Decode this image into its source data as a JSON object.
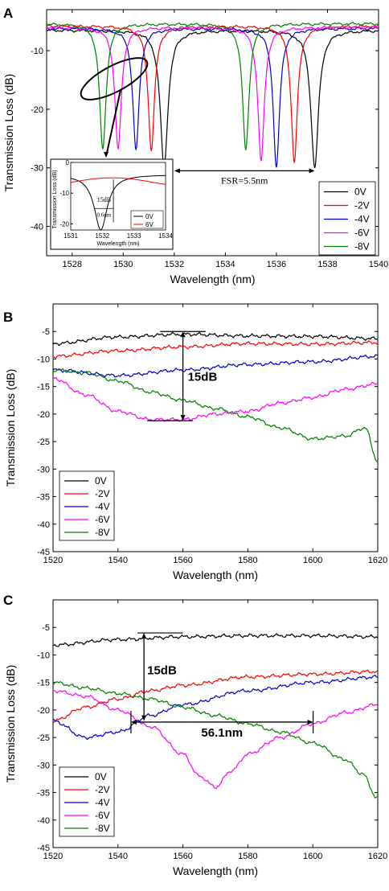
{
  "colors": {
    "0V": "#000000",
    "-2V": "#ff0000",
    "-4V": "#0000cc",
    "-6V": "#ff00ff",
    "-8V": "#008000"
  },
  "chart_data": [
    {
      "panel": "A",
      "type": "line",
      "xlabel": "Wavelength (nm)",
      "ylabel": "Transmission Loss (dB)",
      "xlim": [
        1527,
        1540
      ],
      "ylim": [
        -45,
        -3
      ],
      "xticks": [
        1528,
        1530,
        1532,
        1534,
        1536,
        1538,
        1540
      ],
      "yticks": [
        -40,
        -30,
        -20,
        -10
      ],
      "legend_position": "bottom-right",
      "series": [
        {
          "name": "0V",
          "color": "#000000",
          "baseline": -6.5,
          "dips": [
            [
              1531.6,
              -30,
              0.18
            ],
            [
              1537.5,
              -30,
              0.18
            ]
          ]
        },
        {
          "name": "-2V",
          "color": "#ff0000",
          "baseline": -5.8,
          "dips": [
            [
              1531.1,
              -27,
              0.15
            ],
            [
              1536.7,
              -29,
              0.15
            ]
          ]
        },
        {
          "name": "-4V",
          "color": "#0000cc",
          "baseline": -6.2,
          "dips": [
            [
              1530.5,
              -27,
              0.15
            ],
            [
              1536.0,
              -30,
              0.15
            ]
          ]
        },
        {
          "name": "-6V",
          "color": "#ff00ff",
          "baseline": -6.0,
          "dips": [
            [
              1529.8,
              -27,
              0.15
            ],
            [
              1535.4,
              -29,
              0.15
            ]
          ]
        },
        {
          "name": "-8V",
          "color": "#008000",
          "baseline": -5.4,
          "dips": [
            [
              1529.2,
              -27,
              0.15
            ],
            [
              1534.8,
              -27,
              0.15
            ]
          ]
        }
      ],
      "annotations": {
        "fsr_label": "FSR=5.5nm",
        "fsr_from": 1532.0,
        "fsr_to": 1537.5,
        "fsr_level": -30.5
      },
      "inset": {
        "xlabel": "Wavelength (nm)",
        "ylabel": "Transmission Loss (dB)",
        "xlim": [
          1531,
          1534
        ],
        "ylim": [
          -22,
          0
        ],
        "xticks": [
          1531,
          1532,
          1533,
          1534
        ],
        "yticks": [
          0,
          -10,
          -20
        ],
        "label_15db": "15dB",
        "label_06nm": "0.6nm",
        "series": [
          {
            "name": "0V",
            "color": "#000000"
          },
          {
            "name": "6V",
            "color": "#ff0000"
          }
        ]
      }
    },
    {
      "panel": "B",
      "type": "line",
      "xlabel": "Wavelength (nm)",
      "ylabel": "Transmission Loss  (dB)",
      "xlim": [
        1520,
        1620
      ],
      "ylim": [
        -45,
        0
      ],
      "xticks": [
        1520,
        1540,
        1560,
        1580,
        1600,
        1620
      ],
      "yticks": [
        -45,
        -40,
        -35,
        -30,
        -25,
        -20,
        -15,
        -10,
        -5
      ],
      "legend_position": "bottom-left",
      "series": [
        {
          "name": "0V",
          "color": "#000000",
          "x": [
            1520,
            1540,
            1560,
            1580,
            1600,
            1620
          ],
          "y": [
            -7.2,
            -6.0,
            -5.5,
            -5.8,
            -5.9,
            -6.3
          ]
        },
        {
          "name": "-2V",
          "color": "#ff0000",
          "x": [
            1520,
            1540,
            1560,
            1580,
            1600,
            1620
          ],
          "y": [
            -9.5,
            -8.5,
            -7.8,
            -7.2,
            -7.3,
            -7.0
          ]
        },
        {
          "name": "-4V",
          "color": "#0000cc",
          "x": [
            1520,
            1540,
            1560,
            1580,
            1600,
            1620
          ],
          "y": [
            -12.0,
            -13.0,
            -12.0,
            -11.0,
            -10.5,
            -9.5
          ]
        },
        {
          "name": "-6V",
          "color": "#ff00ff",
          "x": [
            1520,
            1530,
            1540,
            1550,
            1560,
            1570,
            1580,
            1590,
            1600,
            1610,
            1620
          ],
          "y": [
            -13.5,
            -16.5,
            -19.5,
            -21.0,
            -21.0,
            -20.0,
            -19.5,
            -18.0,
            -17.0,
            -15.5,
            -14.5
          ]
        },
        {
          "name": "-8V",
          "color": "#008000",
          "x": [
            1520,
            1530,
            1540,
            1550,
            1560,
            1570,
            1580,
            1590,
            1600,
            1610,
            1616,
            1620
          ],
          "y": [
            -12.0,
            -12.5,
            -14.0,
            -16.0,
            -17.5,
            -19.0,
            -20.5,
            -22.5,
            -24.5,
            -24.0,
            -22.5,
            -28.5
          ]
        }
      ],
      "annotations": {
        "label": "15dB",
        "x": 1560,
        "y_top": -5.0,
        "y_bottom": -21.2
      }
    },
    {
      "panel": "C",
      "type": "line",
      "xlabel": "Wavelength (nm)",
      "ylabel": "Transmission Loss (dB)",
      "xlim": [
        1520,
        1620
      ],
      "ylim": [
        -45,
        0
      ],
      "xticks": [
        1520,
        1540,
        1560,
        1580,
        1600,
        1620
      ],
      "yticks": [
        -45,
        -40,
        -35,
        -30,
        -25,
        -20,
        -15,
        -10,
        -5
      ],
      "legend_position": "bottom-left",
      "series": [
        {
          "name": "0V",
          "color": "#000000",
          "x": [
            1520,
            1540,
            1560,
            1580,
            1600,
            1620
          ],
          "y": [
            -8.2,
            -7.2,
            -6.7,
            -6.5,
            -6.5,
            -6.7
          ]
        },
        {
          "name": "-2V",
          "color": "#ff0000",
          "x": [
            1520,
            1530,
            1540,
            1550,
            1560,
            1580,
            1600,
            1620
          ],
          "y": [
            -22.0,
            -19.5,
            -18.0,
            -16.5,
            -15.5,
            -14.0,
            -13.5,
            -13.0
          ]
        },
        {
          "name": "-4V",
          "color": "#0000cc",
          "x": [
            1520,
            1530,
            1540,
            1550,
            1560,
            1580,
            1600,
            1620
          ],
          "y": [
            -22.0,
            -25.0,
            -24.0,
            -21.0,
            -19.0,
            -16.5,
            -15.0,
            -14.0
          ]
        },
        {
          "name": "-6V",
          "color": "#ff00ff",
          "x": [
            1520,
            1530,
            1540,
            1550,
            1560,
            1565,
            1570,
            1575,
            1580,
            1590,
            1600,
            1610,
            1620
          ],
          "y": [
            -16.5,
            -17.5,
            -20.0,
            -23.0,
            -28.0,
            -32.0,
            -34.0,
            -31.0,
            -28.0,
            -25.0,
            -22.5,
            -20.5,
            -19.0
          ]
        },
        {
          "name": "-8V",
          "color": "#008000",
          "x": [
            1520,
            1530,
            1540,
            1550,
            1560,
            1570,
            1580,
            1590,
            1600,
            1610,
            1615,
            1620
          ],
          "y": [
            -15.0,
            -16.0,
            -17.0,
            -18.0,
            -19.5,
            -21.0,
            -22.5,
            -24.0,
            -26.0,
            -29.0,
            -31.5,
            -36.0
          ]
        }
      ],
      "annotations": {
        "label_15db": "15dB",
        "x15": 1548,
        "y_top": -6.0,
        "y_bottom": -22.0,
        "label_span": "56.1nm",
        "span_from": 1544.0,
        "span_to": 1600.1,
        "span_level": -22.2
      }
    }
  ],
  "panel_labels": [
    "A",
    "B",
    "C"
  ]
}
